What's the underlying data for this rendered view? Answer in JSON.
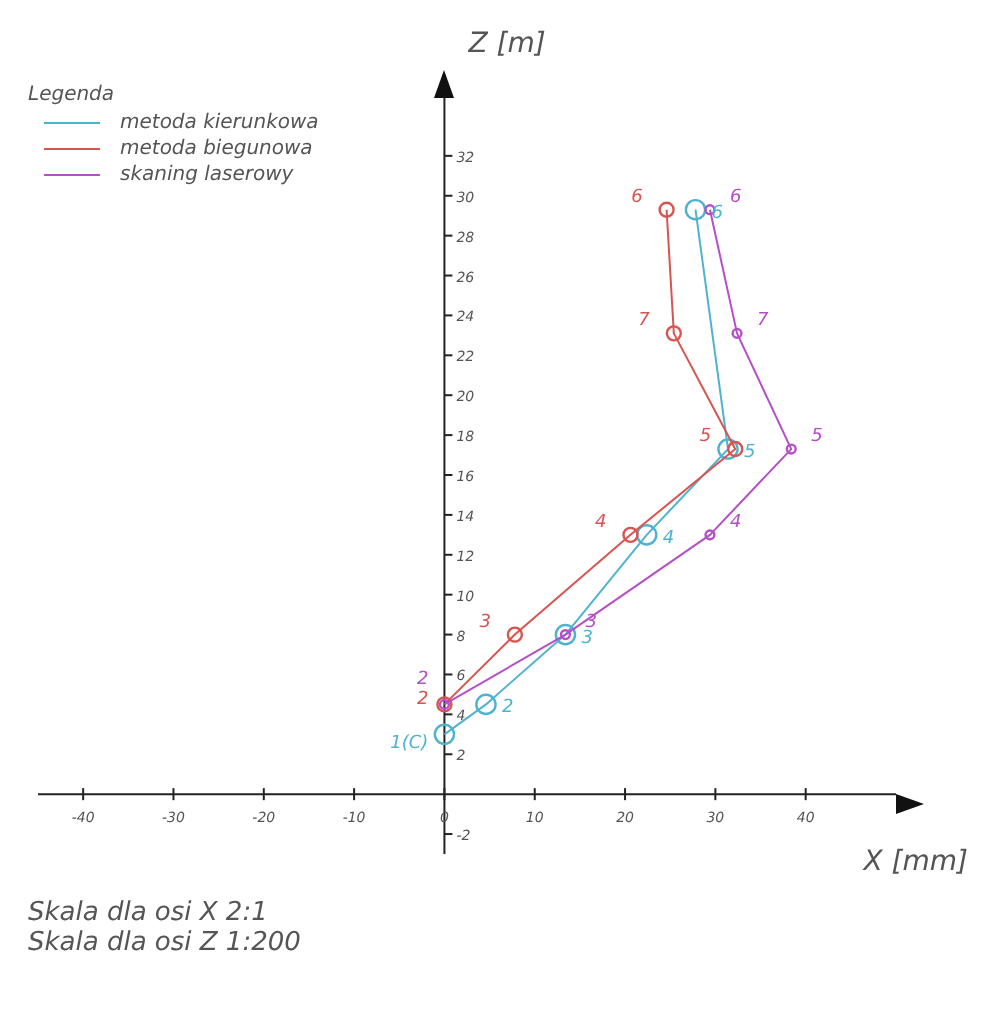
{
  "chart_data": {
    "type": "line",
    "xlabel": "X [mm]",
    "ylabel": "Z [m]",
    "legend_title": "Legenda",
    "legend": "top left",
    "marker": "circle",
    "grid": false,
    "xlim": [
      -45,
      50
    ],
    "xticks": [
      -40,
      -30,
      -20,
      -10,
      0,
      10,
      20,
      30,
      40
    ],
    "ylim": [
      -3,
      35
    ],
    "yticks": [
      -2,
      2,
      4,
      6,
      8,
      10,
      12,
      14,
      16,
      18,
      20,
      22,
      24,
      26,
      28,
      30,
      32
    ],
    "series": [
      {
        "name": "metoda kierunkowa",
        "color": "#4fb3cf",
        "x": [
          0,
          4.6,
          13.4,
          22.4,
          31.4,
          27.8
        ],
        "values": [
          3,
          4.5,
          8,
          13,
          17.3,
          29.3
        ]
      },
      {
        "name": "metoda biegunowa",
        "color": "#d9534f",
        "x": [
          0,
          7.8,
          20.6,
          32.2,
          25.4,
          24.6
        ],
        "values": [
          4.5,
          8,
          13,
          17.3,
          23.1,
          29.3
        ]
      },
      {
        "name": "skaning laserowy",
        "color": "#b44fc8",
        "x": [
          0,
          13.4,
          29.4,
          38.4,
          32.4,
          29.4
        ],
        "values": [
          4.5,
          8,
          13,
          17.3,
          23.1,
          29.3
        ]
      }
    ],
    "annotations": [
      {
        "text": "1(C)",
        "x": 0,
        "y": 3
      },
      {
        "text": "2",
        "x": 4.6,
        "y": 4.5
      },
      {
        "text": "3",
        "x": 13.4,
        "y": 8
      },
      {
        "text": "4",
        "x": 22.4,
        "y": 13
      },
      {
        "text": "5",
        "x": 31.4,
        "y": 17.3
      },
      {
        "text": "6",
        "x": 27.8,
        "y": 29.3
      },
      {
        "text": "2",
        "x": 0,
        "y": 4.5
      },
      {
        "text": "3",
        "x": 7.8,
        "y": 8
      },
      {
        "text": "4",
        "x": 20.6,
        "y": 13
      },
      {
        "text": "5",
        "x": 32.2,
        "y": 17.3
      },
      {
        "text": "7",
        "x": 25.4,
        "y": 23.1
      },
      {
        "text": "6",
        "x": 24.6,
        "y": 29.3
      },
      {
        "text": "2",
        "x": 0,
        "y": 4.5
      },
      {
        "text": "3",
        "x": 13.4,
        "y": 8
      },
      {
        "text": "4",
        "x": 29.4,
        "y": 13
      },
      {
        "text": "5",
        "x": 38.4,
        "y": 17.3
      },
      {
        "text": "7",
        "x": 32.4,
        "y": 23.1
      },
      {
        "text": "6",
        "x": 29.4,
        "y": 29.3
      },
      "Skala dla osi X 2:1",
      "Skala dla osi Z 1:200"
    ]
  }
}
